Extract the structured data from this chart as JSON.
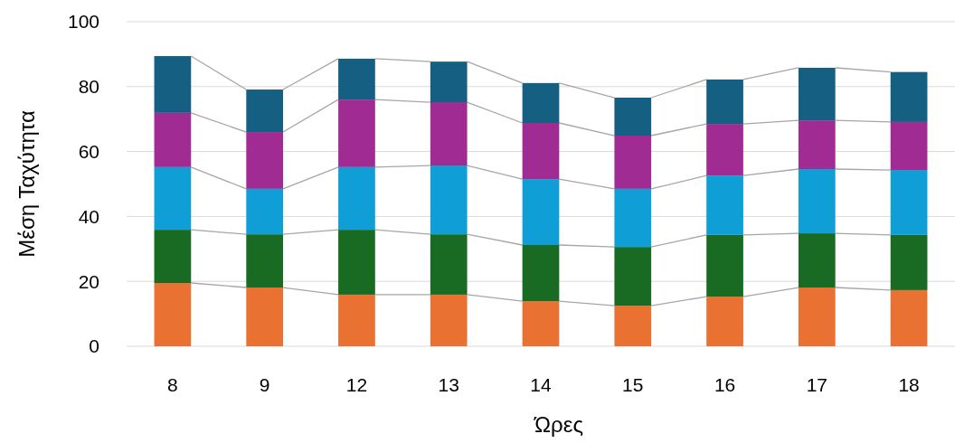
{
  "chart_data": {
    "type": "bar",
    "stacked": true,
    "xlabel": "Ώρες",
    "ylabel": "Μέση Ταχύτητα",
    "categories": [
      "8",
      "9",
      "12",
      "13",
      "14",
      "15",
      "16",
      "17",
      "18"
    ],
    "ylim": [
      0,
      100
    ],
    "yticks": [
      0,
      20,
      40,
      60,
      80,
      100
    ],
    "grid": "y",
    "series": [
      {
        "color": "#e97132",
        "values": [
          19.5,
          18.1,
          15.9,
          15.9,
          13.9,
          12.5,
          15.3,
          18.1,
          17.3
        ]
      },
      {
        "color": "#196b24",
        "values": [
          16.4,
          16.4,
          20.0,
          18.6,
          17.3,
          18.1,
          19.0,
          16.7,
          17.0
        ]
      },
      {
        "color": "#0f9ed5",
        "values": [
          19.3,
          14.0,
          19.3,
          21.2,
          20.3,
          17.9,
          18.3,
          19.8,
          20.0
        ]
      },
      {
        "color": "#a02b93",
        "values": [
          16.7,
          17.5,
          20.8,
          19.5,
          17.3,
          16.4,
          15.9,
          15.0,
          14.8
        ]
      },
      {
        "color": "#156082",
        "values": [
          17.5,
          13.1,
          12.6,
          12.5,
          12.3,
          11.7,
          13.7,
          16.2,
          15.4
        ]
      }
    ]
  }
}
